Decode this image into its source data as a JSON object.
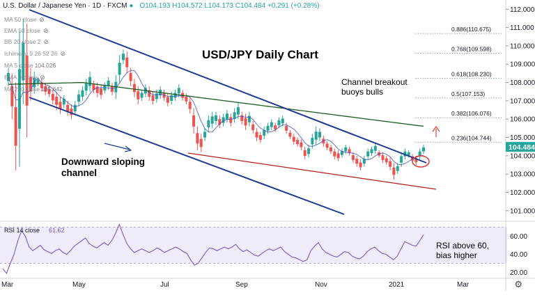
{
  "header": {
    "symbol": "U.S. Dollar / Japanese Yen · 1D · FXCM",
    "ohlc": "O104.193 H104.572 L104.173 C104.484 +0.291 (+0.28%)"
  },
  "indicators": [
    {
      "label": "MA 50 close",
      "value": ""
    },
    {
      "label": "EMA 50 close",
      "value": ""
    },
    {
      "label": "BB 20 close 2",
      "value": ""
    },
    {
      "label": "Ichimoku 9 26 52 26",
      "value": ""
    },
    {
      "label": "MA 5 close",
      "value": "104.026"
    },
    {
      "label": "EMA 9 close",
      "value": ""
    },
    {
      "label": "MA 200 close",
      "value": "105.642"
    }
  ],
  "annotations": {
    "title": "USD/JPY Daily Chart",
    "breakout": [
      "Channel breakout",
      "buoys bulls"
    ],
    "channel": [
      "Downward sloping",
      "channel"
    ],
    "rsi_note": [
      "RSI above 60,",
      "bias higher"
    ]
  },
  "colors": {
    "up": "#26a69a",
    "down": "#ef5350",
    "channel": "#1f3a93",
    "support": "#b71c1c",
    "ma200": "#1b5e20",
    "rsi": "#7e57c2",
    "arrow": "#e53935"
  },
  "chart_data": {
    "type": "candlestick",
    "title": "USD/JPY Daily Chart",
    "last_price": "104.484",
    "ylim": [
      100.5,
      112.2
    ],
    "y_ticks": [
      "112.000",
      "111.000",
      "110.000",
      "109.000",
      "108.000",
      "107.000",
      "106.000",
      "105.000",
      "104.000",
      "103.000",
      "102.000",
      "101.000"
    ],
    "x_ticks": [
      "Mar",
      "May",
      "Jul",
      "Sep",
      "Nov",
      "2021",
      "Mar"
    ],
    "fib_levels": [
      {
        "label": "0.886(110.675)",
        "value": 110.675
      },
      {
        "label": "0.768(109.598)",
        "value": 109.598
      },
      {
        "label": "0.618(108.230)",
        "value": 108.23
      },
      {
        "label": "0.5(107.153)",
        "value": 107.153
      },
      {
        "label": "0.382(106.076)",
        "value": 106.076
      },
      {
        "label": "0.236(104.744)",
        "value": 104.744
      }
    ],
    "price_path": [
      [
        107.8,
        108.8
      ],
      [
        106.0,
        108.5
      ],
      [
        103.2,
        108.0
      ],
      [
        103.4,
        110.8
      ],
      [
        106.8,
        111.5
      ],
      [
        105.0,
        111.2
      ],
      [
        107.0,
        108.8
      ],
      [
        107.4,
        108.6
      ],
      [
        107.8,
        108.3
      ],
      [
        107.5,
        108.2
      ],
      [
        107.3,
        108.0
      ],
      [
        107.2,
        107.8
      ],
      [
        106.8,
        107.6
      ],
      [
        106.5,
        107.5
      ],
      [
        106.3,
        107.2
      ],
      [
        106.6,
        107.3
      ],
      [
        106.2,
        107.0
      ],
      [
        106.0,
        106.8
      ],
      [
        106.2,
        107.0
      ],
      [
        106.7,
        107.6
      ],
      [
        107.0,
        107.8
      ],
      [
        107.3,
        108.2
      ],
      [
        107.5,
        108.6
      ],
      [
        107.4,
        108.1
      ],
      [
        107.2,
        108.0
      ],
      [
        107.1,
        107.9
      ],
      [
        107.4,
        108.0
      ],
      [
        107.6,
        108.3
      ],
      [
        107.3,
        108.0
      ],
      [
        107.1,
        108.4
      ],
      [
        108.0,
        109.5
      ],
      [
        109.0,
        109.8
      ],
      [
        108.5,
        109.7
      ],
      [
        107.8,
        108.8
      ],
      [
        107.2,
        108.2
      ],
      [
        106.8,
        107.8
      ],
      [
        107.0,
        107.6
      ],
      [
        107.2,
        107.9
      ],
      [
        107.0,
        107.8
      ],
      [
        106.8,
        107.5
      ],
      [
        106.9,
        107.6
      ],
      [
        107.1,
        107.8
      ],
      [
        107.0,
        107.6
      ],
      [
        106.7,
        107.4
      ],
      [
        106.8,
        107.5
      ],
      [
        107.0,
        107.6
      ],
      [
        107.2,
        107.9
      ],
      [
        107.0,
        107.6
      ],
      [
        106.8,
        107.4
      ],
      [
        106.3,
        107.2
      ],
      [
        105.2,
        106.6
      ],
      [
        104.3,
        105.6
      ],
      [
        104.2,
        105.2
      ],
      [
        104.8,
        105.5
      ],
      [
        105.3,
        106.2
      ],
      [
        105.5,
        106.4
      ],
      [
        105.7,
        106.4
      ],
      [
        105.5,
        106.2
      ],
      [
        105.6,
        106.3
      ],
      [
        105.8,
        106.5
      ],
      [
        105.6,
        106.3
      ],
      [
        105.8,
        106.6
      ],
      [
        106.0,
        106.9
      ],
      [
        105.7,
        106.4
      ],
      [
        105.4,
        106.3
      ],
      [
        105.6,
        106.4
      ],
      [
        105.2,
        105.9
      ],
      [
        104.8,
        105.5
      ],
      [
        104.7,
        105.3
      ],
      [
        104.9,
        105.6
      ],
      [
        105.2,
        105.8
      ],
      [
        105.4,
        106.0
      ],
      [
        105.3,
        105.8
      ],
      [
        105.5,
        106.1
      ],
      [
        105.6,
        106.2
      ],
      [
        105.2,
        105.8
      ],
      [
        104.9,
        105.4
      ],
      [
        104.6,
        105.2
      ],
      [
        104.5,
        105.0
      ],
      [
        104.3,
        104.9
      ],
      [
        103.8,
        104.5
      ],
      [
        103.9,
        104.6
      ],
      [
        104.4,
        105.2
      ],
      [
        104.6,
        105.6
      ],
      [
        104.8,
        105.5
      ],
      [
        104.5,
        105.1
      ],
      [
        104.3,
        104.8
      ],
      [
        104.1,
        104.6
      ],
      [
        103.8,
        104.4
      ],
      [
        103.7,
        104.3
      ],
      [
        103.9,
        104.4
      ],
      [
        104.1,
        104.6
      ],
      [
        104.0,
        104.5
      ],
      [
        103.6,
        104.2
      ],
      [
        103.4,
        104.0
      ],
      [
        103.2,
        103.8
      ],
      [
        103.4,
        104.0
      ],
      [
        103.8,
        104.4
      ],
      [
        104.0,
        104.5
      ],
      [
        104.1,
        104.7
      ],
      [
        103.9,
        104.3
      ],
      [
        103.6,
        104.2
      ],
      [
        103.5,
        104.0
      ],
      [
        103.2,
        103.9
      ],
      [
        102.7,
        103.6
      ],
      [
        103.0,
        103.6
      ],
      [
        103.4,
        104.2
      ],
      [
        103.8,
        104.4
      ],
      [
        103.9,
        104.3
      ],
      [
        103.6,
        104.1
      ],
      [
        103.5,
        104.0
      ],
      [
        103.8,
        104.4
      ],
      [
        104.1,
        104.6
      ]
    ],
    "rsi": {
      "label": "RSI 14 close",
      "value": "61.62",
      "ylim": [
        15,
        75
      ],
      "y_ticks": [
        "60.00",
        "40.00",
        "20.00"
      ],
      "band": [
        30,
        70
      ],
      "values": [
        24,
        19,
        30,
        40,
        55,
        66,
        60,
        48,
        44,
        47,
        50,
        45,
        43,
        41,
        44,
        46,
        42,
        40,
        44,
        49,
        52,
        55,
        58,
        52,
        49,
        47,
        50,
        53,
        50,
        55,
        63,
        73,
        62,
        52,
        46,
        42,
        44,
        46,
        44,
        42,
        44,
        47,
        45,
        42,
        44,
        46,
        48,
        46,
        43,
        41,
        34,
        28,
        30,
        36,
        42,
        47,
        46,
        44,
        46,
        48,
        46,
        48,
        51,
        46,
        43,
        45,
        42,
        39,
        38,
        41,
        44,
        46,
        44,
        46,
        48,
        43,
        40,
        37,
        36,
        34,
        32,
        34,
        44,
        49,
        53,
        46,
        42,
        40,
        38,
        37,
        40,
        43,
        42,
        38,
        36,
        35,
        38,
        43,
        46,
        48,
        44,
        41,
        40,
        37,
        34,
        38,
        46,
        54,
        52,
        50,
        49,
        55,
        61.62
      ]
    }
  }
}
